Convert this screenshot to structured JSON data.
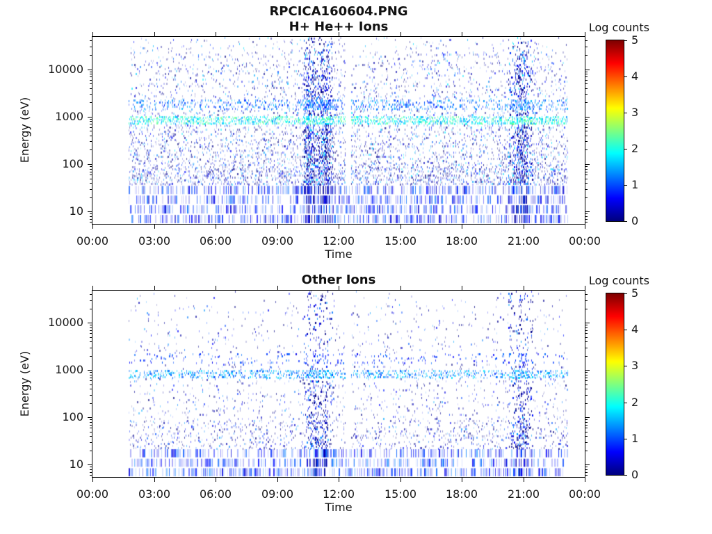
{
  "figure_title": "RPCICA160604.PNG",
  "chart_data": [
    {
      "type": "heatmap",
      "title": "H+ He++ Ions",
      "xlabel": "Time",
      "ylabel": "Energy (eV)",
      "value_label": "Log counts",
      "colormap": "jet",
      "value_range": [
        0,
        5
      ],
      "colorbar_tick_values": [
        0,
        1,
        2,
        3,
        4,
        5
      ],
      "x_unit": "hours",
      "x_range": [
        0,
        24
      ],
      "x_tick_hours": [
        0,
        3,
        6,
        9,
        12,
        15,
        18,
        21,
        24
      ],
      "x_tick_labels": [
        "00:00",
        "03:00",
        "06:00",
        "09:00",
        "12:00",
        "15:00",
        "18:00",
        "21:00",
        "00:00"
      ],
      "y_scale": "log",
      "y_range_ev": [
        5.5,
        48000
      ],
      "y_tick_values": [
        10,
        100,
        1000,
        10000
      ],
      "y_tick_labels": [
        "10",
        "100",
        "1000",
        "10000"
      ],
      "data_span_hours": [
        1.75,
        23.2
      ],
      "data_gap_hours": [
        12.37,
        12.62
      ],
      "background_noise": {
        "log_counts_range": [
          0,
          1.8
        ],
        "density_top": 0.12,
        "density_bottom": 0.45,
        "low_energy_extra_below_ev": 90,
        "low_energy_extra": 0.12
      },
      "horizontal_bands": [
        {
          "name": "solar-wind-proton-band",
          "energy_ev": [
            700,
            1000
          ],
          "log_counts_range": [
            1.3,
            2.5
          ],
          "density": 0.55
        },
        {
          "name": "alpha-particle-band",
          "energy_ev": [
            1450,
            2300
          ],
          "log_counts_range": [
            0.7,
            1.6
          ],
          "density": 0.2
        }
      ],
      "low_energy_stripes": {
        "energy_ev": [
          5.5,
          36
        ],
        "log_counts_range": [
          0.3,
          1.2
        ],
        "density": 0.8
      },
      "vertical_events": [
        {
          "time_hours": [
            10.3,
            11.7
          ],
          "peaks_hours": [
            10.55,
            11.3
          ],
          "log_counts_range": [
            0,
            1
          ],
          "density_boost": 3.0
        },
        {
          "time_hours": [
            20.3,
            21.5
          ],
          "peaks_hours": [
            20.9
          ],
          "log_counts_range": [
            0,
            1
          ],
          "density_boost": 3.0
        }
      ]
    },
    {
      "type": "heatmap",
      "title": "Other Ions",
      "xlabel": "Time",
      "ylabel": "Energy (eV)",
      "value_label": "Log counts",
      "colormap": "jet",
      "value_range": [
        0,
        5
      ],
      "colorbar_tick_values": [
        0,
        1,
        2,
        3,
        4,
        5
      ],
      "x_unit": "hours",
      "x_range": [
        0,
        24
      ],
      "x_tick_hours": [
        0,
        3,
        6,
        9,
        12,
        15,
        18,
        21,
        24
      ],
      "x_tick_labels": [
        "00:00",
        "03:00",
        "06:00",
        "09:00",
        "12:00",
        "15:00",
        "18:00",
        "21:00",
        "00:00"
      ],
      "y_scale": "log",
      "y_range_ev": [
        5.5,
        48000
      ],
      "y_tick_values": [
        10,
        100,
        1000,
        10000
      ],
      "y_tick_labels": [
        "10",
        "100",
        "1000",
        "10000"
      ],
      "data_span_hours": [
        1.75,
        23.2
      ],
      "data_gap_hours": [
        12.37,
        12.62
      ],
      "background_noise": {
        "log_counts_range": [
          0,
          1.5
        ],
        "density_top": 0.035,
        "density_bottom": 0.17,
        "low_energy_extra_below_ev": 90,
        "low_energy_extra": 0.08
      },
      "horizontal_bands": [
        {
          "name": "solar-wind-proton-band",
          "energy_ev": [
            700,
            1000
          ],
          "log_counts_range": [
            0.9,
            1.8
          ],
          "density": 0.45
        },
        {
          "name": "alpha-particle-band",
          "energy_ev": [
            1450,
            2300
          ],
          "log_counts_range": [
            0.5,
            1.2
          ],
          "density": 0.08
        }
      ],
      "low_energy_stripes": {
        "energy_ev": [
          5.5,
          22
        ],
        "log_counts_range": [
          0.4,
          1.3
        ],
        "density": 0.8
      },
      "vertical_events": [
        {
          "time_hours": [
            10.3,
            11.7
          ],
          "peaks_hours": [
            10.8,
            11.2
          ],
          "log_counts_range": [
            0,
            1
          ],
          "density_boost": 2.2
        },
        {
          "time_hours": [
            20.3,
            21.5
          ],
          "peaks_hours": [
            20.9
          ],
          "log_counts_range": [
            0,
            1
          ],
          "density_boost": 2.7
        }
      ]
    }
  ]
}
